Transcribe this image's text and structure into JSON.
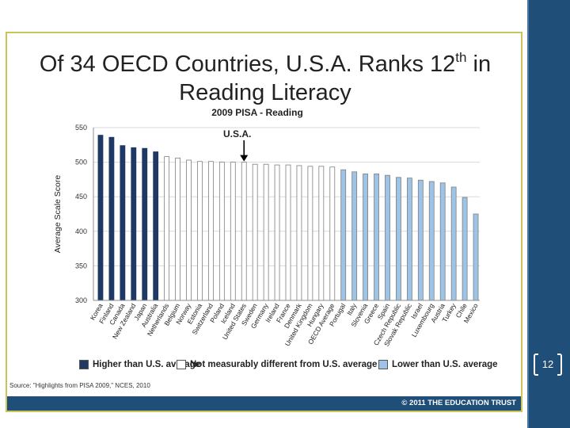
{
  "slide": {
    "title_main": "Of 34 OECD Countries, U.S.A. Ranks 12",
    "title_superscript": "th",
    "title_end": " in",
    "title_line2": "Reading Literacy",
    "source": "Source:  \"Highlights from PISA 2009,\" NCES, 2010",
    "copyright": "© 2011 THE EDUCATION TRUST",
    "page_number": "12"
  },
  "colors": {
    "higher": "#1f3864",
    "not_different": "#ffffff",
    "lower": "#9dc3e6",
    "footer": "#1f4e79"
  },
  "chart_data": {
    "type": "bar",
    "title": "2009 PISA - Reading",
    "ylabel": "Average Scale Score",
    "xlabel": "",
    "ylim": [
      300,
      550
    ],
    "yticks": [
      300,
      350,
      400,
      450,
      500,
      550
    ],
    "grid": true,
    "annotation": "U.S.A.",
    "annotation_target": "United States",
    "categories": [
      "Korea",
      "Finland",
      "Canada",
      "New Zealand",
      "Japan",
      "Australia",
      "Netherlands",
      "Belgium",
      "Norway",
      "Estonia",
      "Switzerland",
      "Poland",
      "Iceland",
      "United States",
      "Sweden",
      "Germany",
      "Ireland",
      "France",
      "Denmark",
      "United Kingdom",
      "Hungary",
      "OECD Average",
      "Portugal",
      "Italy",
      "Slovenia",
      "Greece",
      "Spain",
      "Czech Republic",
      "Slovak Republic",
      "Israel",
      "Luxembourg",
      "Austria",
      "Turkey",
      "Chile",
      "Mexico"
    ],
    "values": [
      539,
      536,
      524,
      521,
      520,
      515,
      508,
      506,
      503,
      501,
      501,
      500,
      500,
      500,
      497,
      497,
      496,
      496,
      495,
      494,
      494,
      493,
      489,
      486,
      483,
      483,
      481,
      478,
      477,
      474,
      472,
      470,
      464,
      449,
      425
    ],
    "groups": [
      "higher",
      "higher",
      "higher",
      "higher",
      "higher",
      "higher",
      "same",
      "same",
      "same",
      "same",
      "same",
      "same",
      "same",
      "same",
      "same",
      "same",
      "same",
      "same",
      "same",
      "same",
      "same",
      "same",
      "lower",
      "lower",
      "lower",
      "lower",
      "lower",
      "lower",
      "lower",
      "lower",
      "lower",
      "lower",
      "lower",
      "lower",
      "lower"
    ],
    "legend": [
      {
        "key": "higher",
        "label": "Higher than U.S. average"
      },
      {
        "key": "same",
        "label": "Not measurably different from U.S. average"
      },
      {
        "key": "lower",
        "label": "Lower than U.S. average"
      }
    ]
  }
}
